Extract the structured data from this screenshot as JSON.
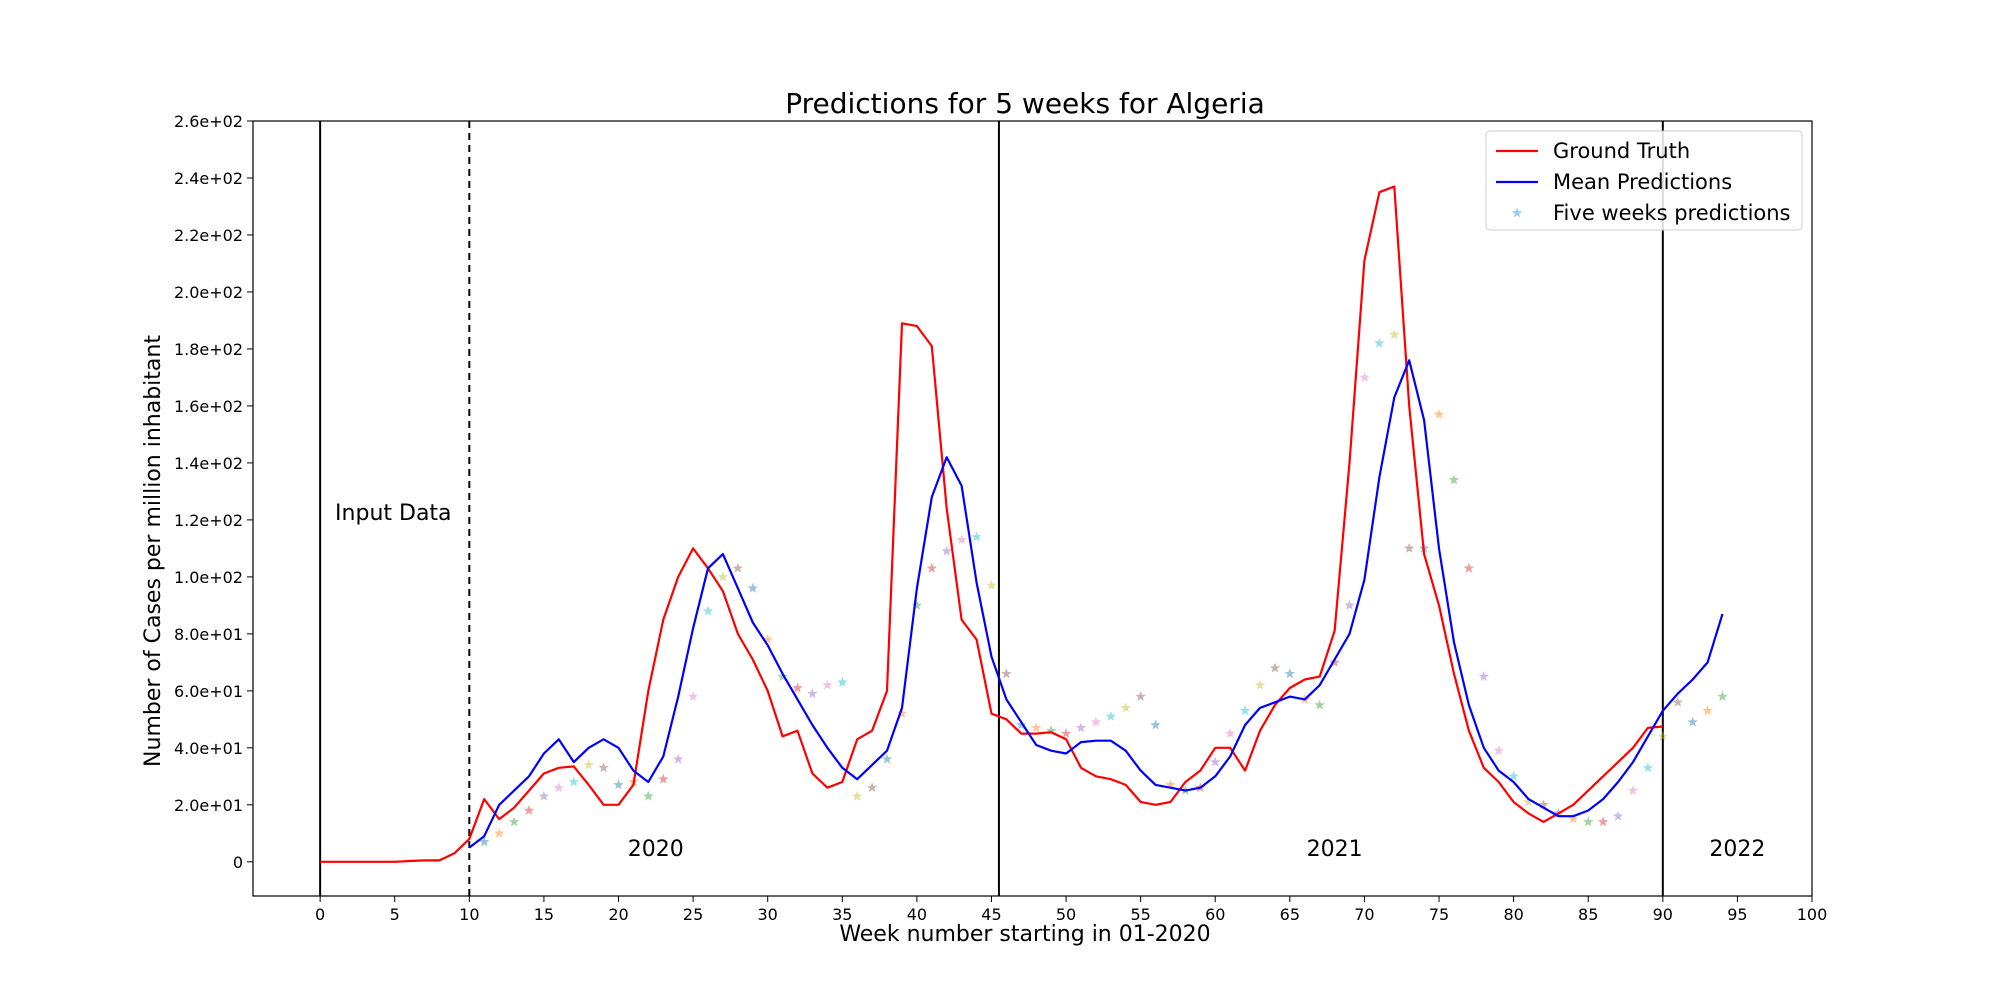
{
  "chart_data": {
    "type": "line",
    "title": "Predictions for 5 weeks for Algeria",
    "xlabel": "Week number starting in 01-2020",
    "ylabel": "Number of Cases per million inhabitant",
    "xlim": [
      -4.5,
      100
    ],
    "ylim": [
      -12,
      260
    ],
    "x_ticks": [
      0,
      5,
      10,
      15,
      20,
      25,
      30,
      35,
      40,
      45,
      50,
      55,
      60,
      65,
      70,
      75,
      80,
      85,
      90,
      95,
      100
    ],
    "y_ticks": [
      {
        "value": 0,
        "label": "0"
      },
      {
        "value": 20,
        "label": "2.0e+01"
      },
      {
        "value": 40,
        "label": "4.0e+01"
      },
      {
        "value": 60,
        "label": "6.0e+01"
      },
      {
        "value": 80,
        "label": "8.0e+01"
      },
      {
        "value": 100,
        "label": "1.0e+02"
      },
      {
        "value": 120,
        "label": "1.2e+02"
      },
      {
        "value": 140,
        "label": "1.4e+02"
      },
      {
        "value": 160,
        "label": "1.6e+02"
      },
      {
        "value": 180,
        "label": "1.8e+02"
      },
      {
        "value": 200,
        "label": "2.0e+02"
      },
      {
        "value": 220,
        "label": "2.2e+02"
      },
      {
        "value": 240,
        "label": "2.4e+02"
      },
      {
        "value": 260,
        "label": "2.6e+02"
      }
    ],
    "grid": false,
    "legend_position": "top-right",
    "vertical_lines": [
      {
        "x": 0,
        "style": "solid"
      },
      {
        "x": 10,
        "style": "dashed"
      },
      {
        "x": 45.5,
        "style": "solid"
      },
      {
        "x": 90,
        "style": "solid"
      }
    ],
    "annotations": [
      {
        "text": "Input Data",
        "x": 1,
        "y": 120
      },
      {
        "text": "2020",
        "x": 22.5,
        "y": 2
      },
      {
        "text": "2021",
        "x": 68,
        "y": 2
      },
      {
        "text": "2022",
        "x": 95,
        "y": 2
      }
    ],
    "series": [
      {
        "name": "Ground Truth",
        "color": "#ff0000",
        "style": "line",
        "x": [
          0,
          1,
          2,
          3,
          4,
          5,
          6,
          7,
          8,
          9,
          10,
          11,
          12,
          13,
          14,
          15,
          16,
          17,
          18,
          19,
          20,
          21,
          22,
          23,
          24,
          25,
          26,
          27,
          28,
          29,
          30,
          31,
          32,
          33,
          34,
          35,
          36,
          37,
          38,
          39,
          40,
          41,
          42,
          43,
          44,
          45,
          46,
          47,
          48,
          49,
          50,
          51,
          52,
          53,
          54,
          55,
          56,
          57,
          58,
          59,
          60,
          61,
          62,
          63,
          64,
          65,
          66,
          67,
          68,
          69,
          70,
          71,
          72,
          73,
          74,
          75,
          76,
          77,
          78,
          79,
          80,
          81,
          82,
          83,
          84,
          85,
          86,
          87,
          88,
          89,
          90
        ],
        "y": [
          0,
          0,
          0,
          0,
          0,
          0,
          0.3,
          0.5,
          0.5,
          3,
          8,
          22,
          15,
          19,
          25,
          31,
          33,
          33.5,
          27,
          20,
          20,
          27,
          60,
          85,
          100,
          110,
          103,
          95,
          80,
          71,
          60,
          44,
          46,
          31,
          26,
          28,
          43,
          46,
          60,
          189,
          188,
          181,
          124,
          85,
          78,
          52,
          50,
          45,
          45,
          45.5,
          43,
          33,
          30,
          29,
          27,
          21,
          20,
          21,
          28,
          32,
          40,
          40,
          32,
          46,
          55,
          61,
          64,
          65,
          81,
          140,
          211,
          235,
          237,
          160,
          108,
          90,
          66,
          46,
          33,
          28,
          21,
          17,
          14,
          17,
          20,
          25,
          30,
          35,
          40,
          47,
          47.5
        ]
      },
      {
        "name": "Mean Predictions",
        "color": "#0000ff",
        "style": "line",
        "x": [
          10,
          11,
          12,
          13,
          14,
          15,
          16,
          17,
          18,
          19,
          20,
          21,
          22,
          23,
          24,
          25,
          26,
          27,
          28,
          29,
          30,
          31,
          32,
          33,
          34,
          35,
          36,
          37,
          38,
          39,
          40,
          41,
          42,
          43,
          44,
          45,
          46,
          47,
          48,
          49,
          50,
          51,
          52,
          53,
          54,
          55,
          56,
          57,
          58,
          59,
          60,
          61,
          62,
          63,
          64,
          65,
          66,
          67,
          68,
          69,
          70,
          71,
          72,
          73,
          74,
          75,
          76,
          77,
          78,
          79,
          80,
          81,
          82,
          83,
          84,
          85,
          86,
          87,
          88,
          89,
          90,
          91,
          92,
          93,
          94
        ],
        "y": [
          5,
          9,
          20,
          25,
          30,
          38,
          43,
          35,
          40,
          43,
          40,
          32,
          28,
          37,
          58,
          82,
          103,
          108,
          96,
          84,
          76,
          66,
          57,
          48,
          40,
          33,
          29,
          34,
          39,
          54,
          96,
          128,
          142,
          132,
          98,
          72,
          57,
          49,
          41,
          39,
          38,
          42,
          42.5,
          42.5,
          39,
          32,
          27,
          26,
          25,
          26,
          30,
          37,
          48,
          54,
          56,
          58,
          57,
          62,
          71,
          80,
          99,
          135,
          163,
          176,
          155,
          110,
          77,
          55,
          40,
          32,
          28,
          22,
          19,
          16,
          16,
          18,
          22,
          28,
          35,
          44,
          53,
          59,
          64,
          70,
          87
        ]
      },
      {
        "name": "Five weeks predictions",
        "color": "#4fa3d9",
        "style": "markers",
        "x": [
          11,
          12,
          13,
          14,
          15,
          16,
          17,
          18,
          19,
          20,
          21,
          22,
          23,
          24,
          25,
          26,
          27,
          28,
          29,
          30,
          31,
          32,
          33,
          34,
          35,
          36,
          37,
          38,
          39,
          40,
          41,
          42,
          43,
          44,
          45,
          46,
          47,
          48,
          49,
          50,
          51,
          52,
          53,
          54,
          55,
          56,
          57,
          58,
          59,
          60,
          61,
          62,
          63,
          64,
          65,
          66,
          67,
          68,
          69,
          70,
          71,
          72,
          73,
          74,
          75,
          76,
          77,
          78,
          79,
          80,
          81,
          82,
          83,
          84,
          85,
          86,
          87,
          88,
          89,
          90,
          91,
          92,
          93,
          94
        ],
        "y": [
          7,
          10,
          14,
          18,
          23,
          26,
          28,
          34,
          33,
          27,
          28,
          23,
          29,
          36,
          58,
          88,
          100,
          103,
          96,
          78,
          65,
          61,
          59,
          62,
          63,
          23,
          26,
          36,
          52,
          90,
          103,
          109,
          113,
          114,
          97,
          66,
          48,
          47,
          46,
          45,
          47,
          49,
          51,
          54,
          58,
          48,
          27,
          25,
          26,
          35,
          45,
          53,
          62,
          68,
          66,
          57,
          55,
          70,
          90,
          170,
          182,
          185,
          110,
          110,
          157,
          134,
          103,
          65,
          39,
          30,
          21,
          20,
          17,
          15,
          14,
          14,
          16,
          25,
          33,
          44,
          56,
          49,
          53,
          58
        ]
      }
    ]
  }
}
